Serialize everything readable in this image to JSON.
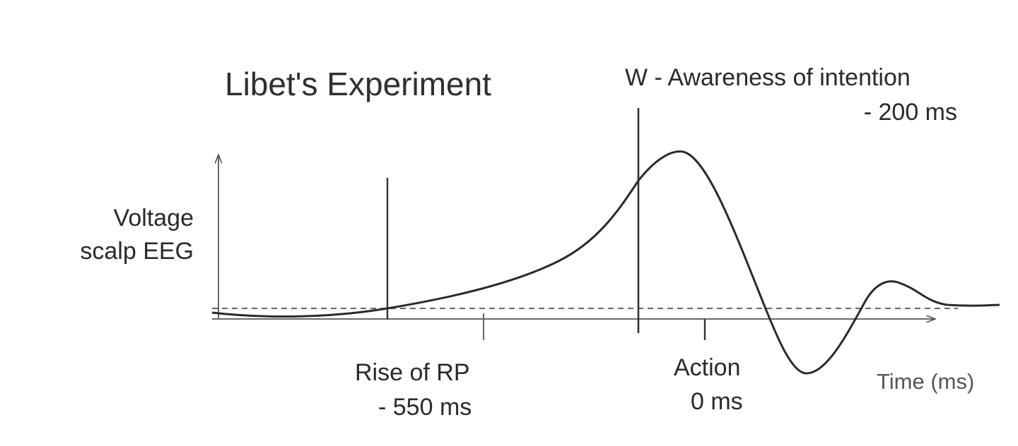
{
  "diagram": {
    "title": "Libet's Experiment",
    "y_axis_label": [
      "Voltage",
      "scalp EEG"
    ],
    "x_axis_label": "Time (ms)",
    "events": {
      "rise_of_rp": {
        "label": "Rise of RP",
        "time": "- 550 ms"
      },
      "awareness": {
        "label": "W - Awareness of intention",
        "time": "- 200 ms"
      },
      "action": {
        "label": "Action",
        "time": "0 ms"
      }
    },
    "colors": {
      "line": "#2a2a2a",
      "baseline": "#555555",
      "text": "#2a2a2a"
    }
  }
}
